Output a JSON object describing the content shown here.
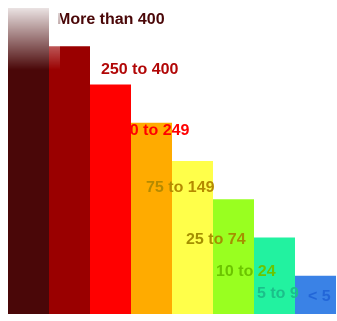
{
  "chart_data": {
    "type": "bar",
    "title": "",
    "xlabel": "",
    "ylabel": "",
    "categories": [
      "More than 400",
      "250 to 400",
      "150 to 249",
      "75 to 149",
      "25 to 74",
      "10 to 24",
      "5 to 9",
      "< 5"
    ],
    "values": [
      8,
      7,
      6,
      5,
      4,
      3,
      2,
      1
    ],
    "colors": [
      "#4a0708",
      "#9a0000",
      "#ff0000",
      "#ffab00",
      "#ffff4a",
      "#99ff20",
      "#22f2a0",
      "#3a82e6"
    ],
    "label_colors": [
      "#4a0708",
      "#b10606",
      "#ff0000",
      "#b58a00",
      "#a48f00",
      "#6bc400",
      "#1bbf8a",
      "#2266d8"
    ],
    "ylim": [
      0,
      8
    ],
    "grid": false,
    "legend": "none"
  }
}
